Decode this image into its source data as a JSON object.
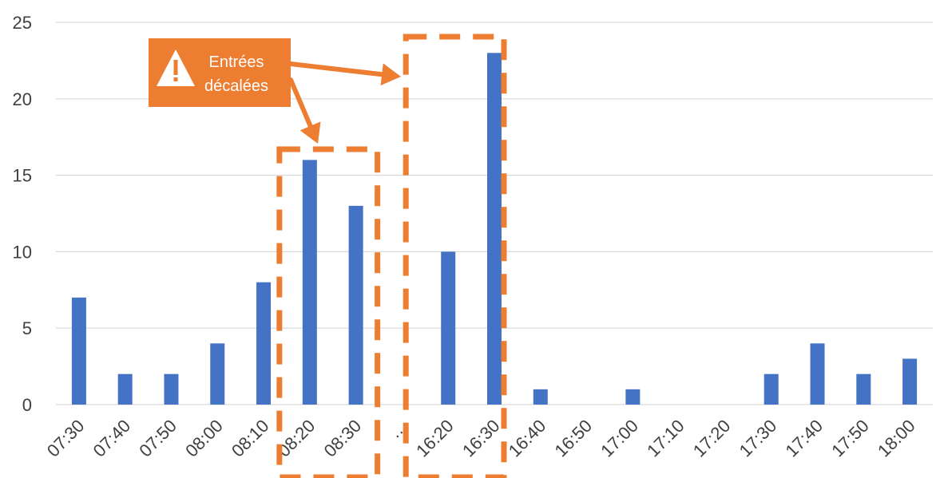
{
  "chart_data": {
    "type": "bar",
    "categories": [
      "07:30",
      "07:40",
      "07:50",
      "08:00",
      "08:10",
      "08:20",
      "08:30",
      "…",
      "16:20",
      "16:30",
      "16:40",
      "16:50",
      "17:00",
      "17:10",
      "17:20",
      "17:30",
      "17:40",
      "17:50",
      "18:00"
    ],
    "values": [
      7,
      2,
      2,
      4,
      8,
      16,
      13,
      0,
      10,
      23,
      1,
      0,
      1,
      0,
      0,
      2,
      4,
      2,
      3
    ],
    "ylim": [
      0,
      25
    ],
    "yticks": [
      0,
      5,
      10,
      15,
      20,
      25
    ],
    "grid": true,
    "title": "",
    "xlabel": "",
    "ylabel": "",
    "colors": {
      "bar": "#4472c4",
      "highlight": "#ed7d31",
      "callout_fill": "#ed7d31",
      "callout_text": "#ffffff",
      "grid": "#d9d9d9",
      "tick_text": "#404040"
    },
    "annotation": {
      "icon": "warning-icon",
      "lines": [
        "Entrées",
        "décalées"
      ],
      "highlighted_categories": [
        [
          "08:20",
          "08:30"
        ],
        [
          "16:20",
          "16:30"
        ]
      ]
    }
  }
}
